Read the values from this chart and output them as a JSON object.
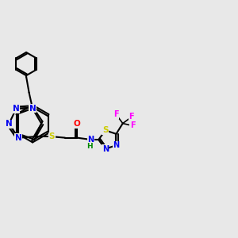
{
  "background_color": "#e8e8e8",
  "bond_color": "#000000",
  "atom_colors": {
    "N": "#0000ee",
    "S": "#cccc00",
    "O": "#ff0000",
    "F": "#ff00ff",
    "H": "#008800",
    "C": "#000000"
  },
  "figsize": [
    3.0,
    3.0
  ],
  "dpi": 100,
  "lw": 1.5
}
